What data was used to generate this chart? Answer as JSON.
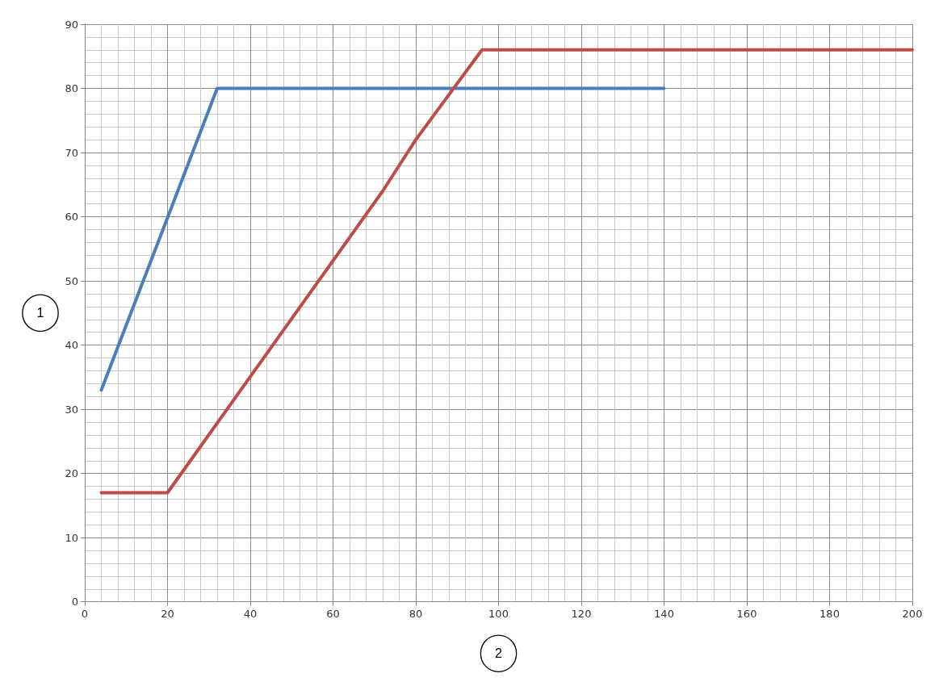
{
  "chart_data": {
    "type": "line",
    "xlabel": "2",
    "ylabel": "1",
    "xlim": [
      0,
      200
    ],
    "xticks": [
      0,
      20,
      40,
      60,
      80,
      100,
      120,
      140,
      160,
      180,
      200
    ],
    "ylim": [
      0,
      90
    ],
    "yticks": [
      0,
      10,
      20,
      30,
      40,
      50,
      60,
      70,
      80,
      90
    ],
    "grid": true,
    "marker": "none",
    "line_style": "solid",
    "series": [
      {
        "color": "#4a7ebb",
        "x": [
          4,
          32,
          140
        ],
        "values": [
          33,
          80,
          80
        ]
      },
      {
        "color": "#be4b48",
        "x": [
          4,
          20,
          72,
          80,
          96,
          200
        ],
        "values": [
          17,
          17,
          64,
          72,
          86,
          86
        ]
      }
    ]
  }
}
